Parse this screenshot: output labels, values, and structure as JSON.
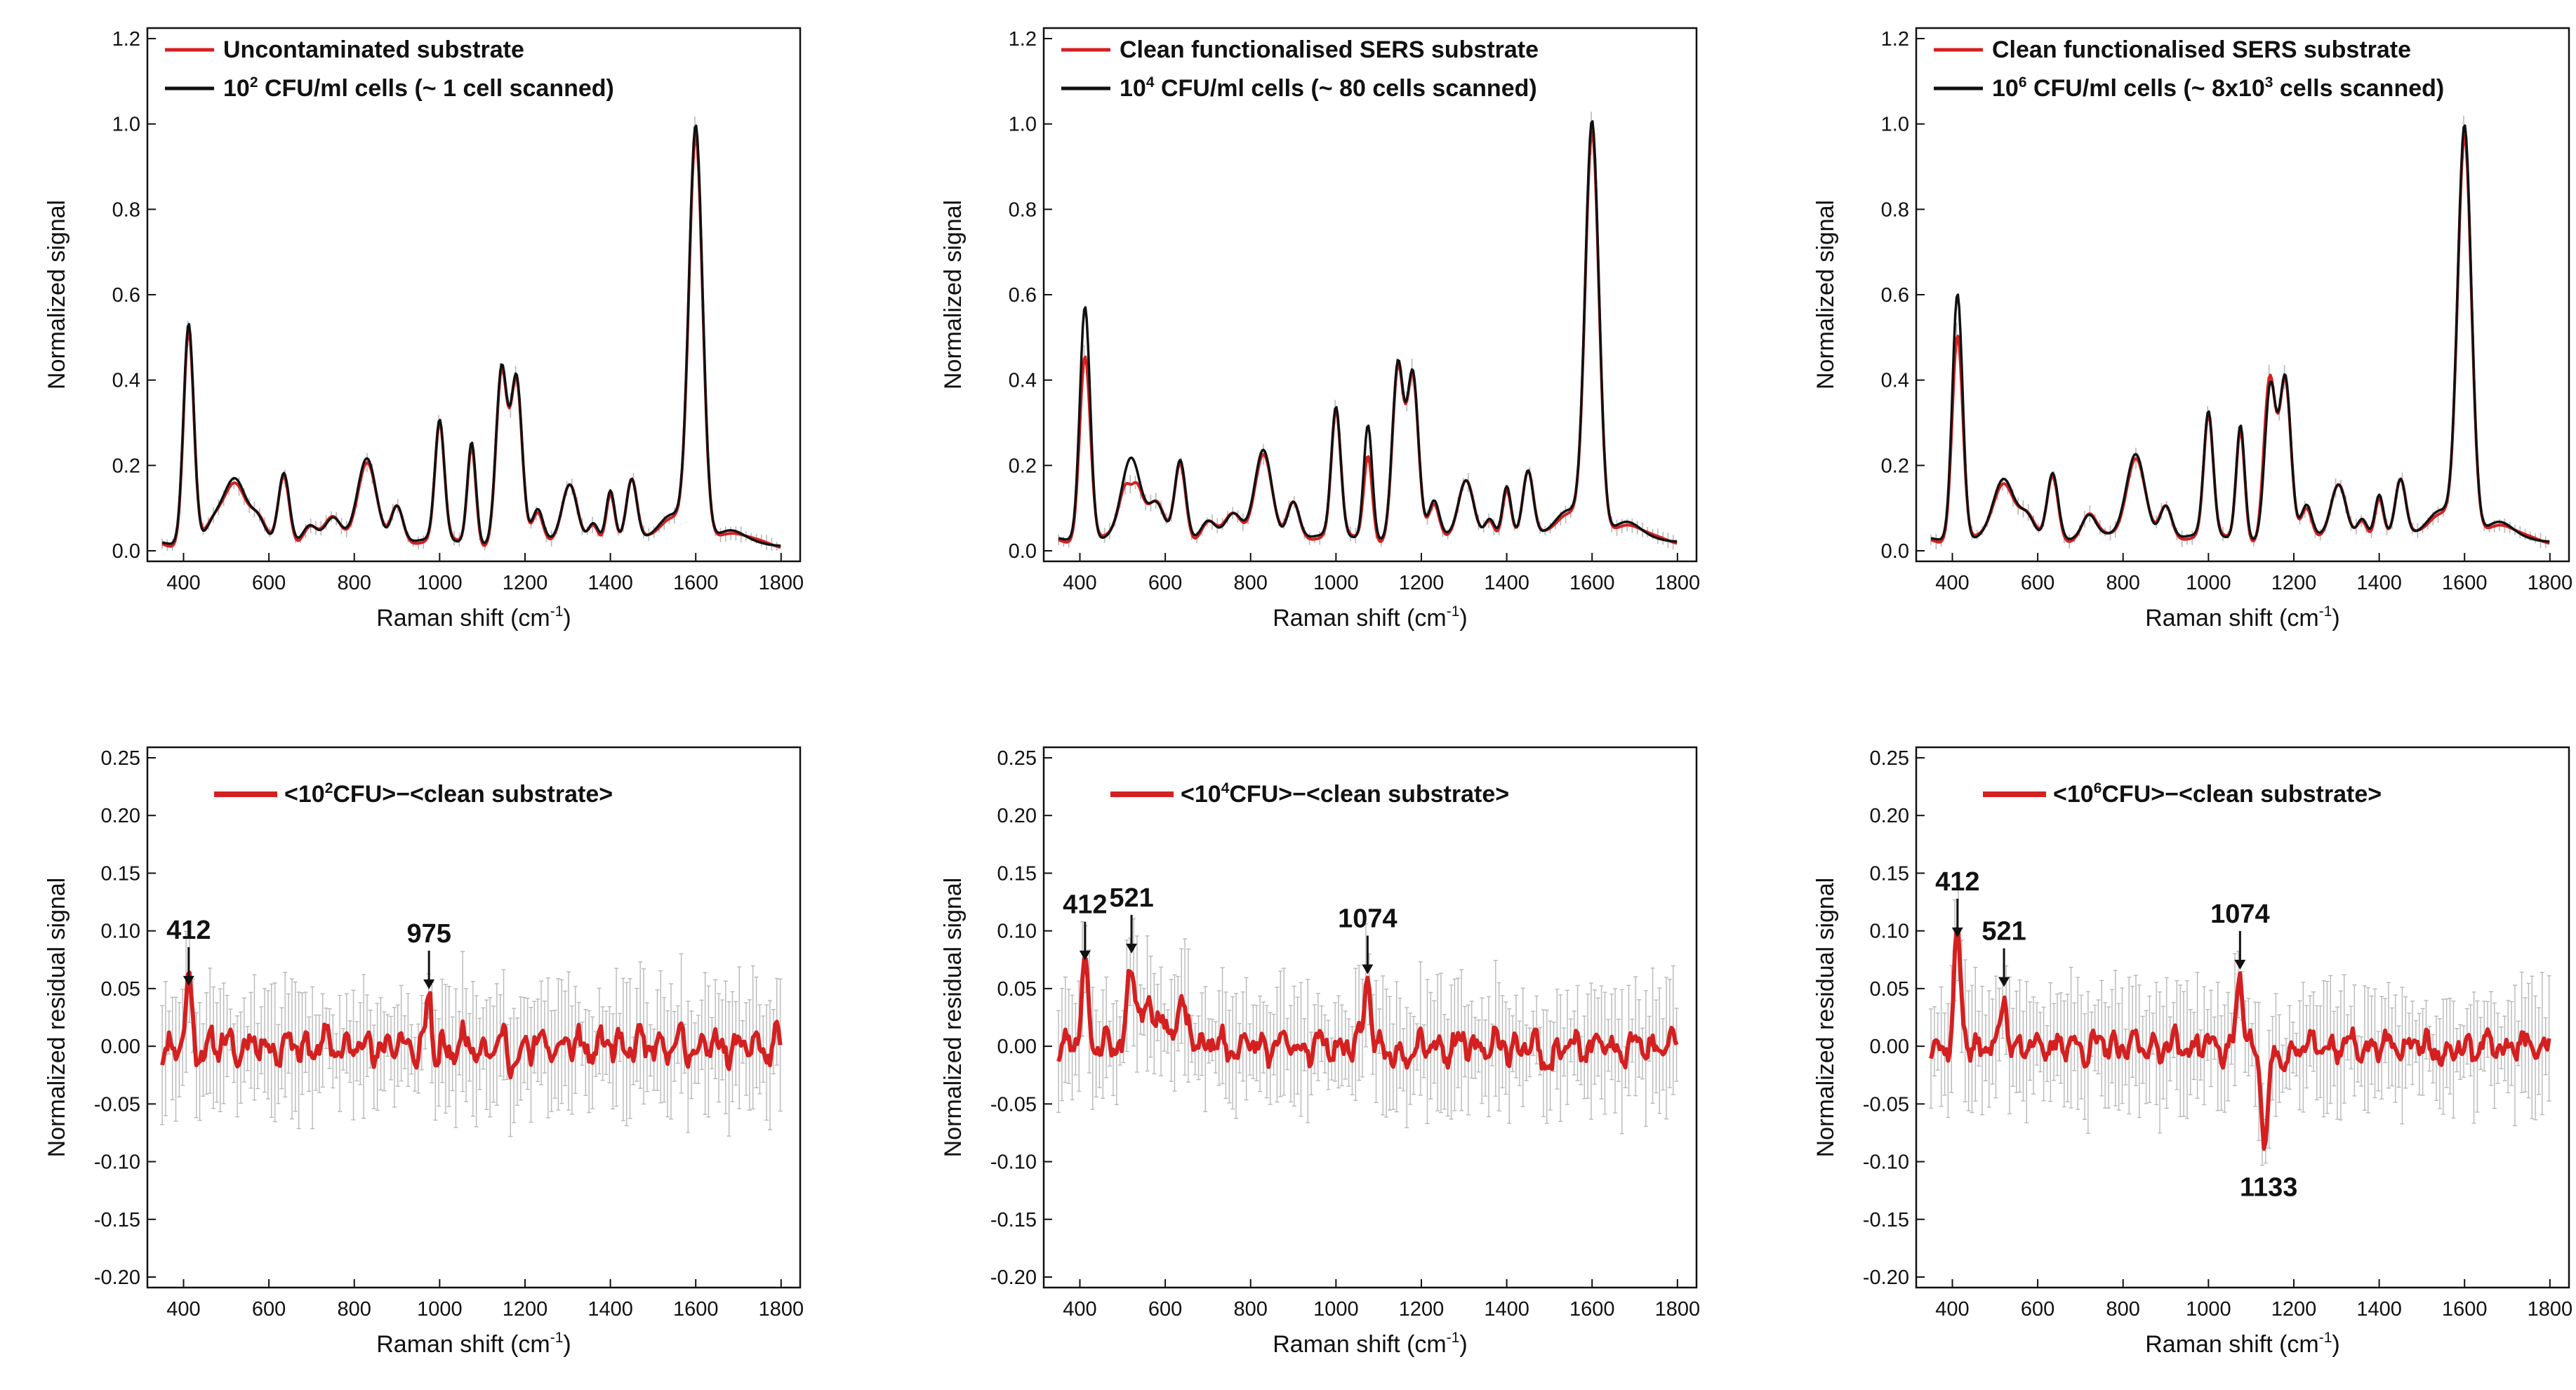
{
  "colors": {
    "contaminated": "#111111",
    "clean": "#d42020",
    "residual": "#d42020",
    "error_bar": "#b8b8b8",
    "axis": "#111111",
    "negative_peak": "#c81e1e"
  },
  "chart_data": [
    {
      "id": "p1",
      "type": "line",
      "xlabel": "Raman shift (cm-1)",
      "ylabel": "Normalized signal",
      "xlim": [
        340,
        1820
      ],
      "ylim": [
        0.0,
        1.2
      ],
      "xticks": [
        400,
        600,
        800,
        1000,
        1200,
        1400,
        1600,
        1800
      ],
      "yticks": [
        0.0,
        0.2,
        0.4,
        0.6,
        0.8,
        1.0,
        1.2
      ],
      "legend": [
        {
          "key": "clean",
          "parts": [
            {
              "t": "Uncontaminated substrate"
            }
          ]
        },
        {
          "key": "contaminated",
          "parts": [
            {
              "t": "10"
            },
            {
              "t": "2",
              "sup": true
            },
            {
              "t": " CFU/ml cells (~ 1 cell scanned)"
            }
          ]
        }
      ],
      "baseline": 0.02,
      "peaks": [
        {
          "x": 412,
          "h": 0.52,
          "w": 12
        },
        {
          "x": 470,
          "h": 0.04,
          "w": 20
        },
        {
          "x": 520,
          "h": 0.14,
          "w": 26
        },
        {
          "x": 575,
          "h": 0.05,
          "w": 18
        },
        {
          "x": 635,
          "h": 0.17,
          "w": 13
        },
        {
          "x": 695,
          "h": 0.04,
          "w": 16
        },
        {
          "x": 750,
          "h": 0.05,
          "w": 18
        },
        {
          "x": 830,
          "h": 0.2,
          "w": 22
        },
        {
          "x": 900,
          "h": 0.09,
          "w": 14
        },
        {
          "x": 1000,
          "h": 0.28,
          "w": 11
        },
        {
          "x": 1075,
          "h": 0.24,
          "w": 10
        },
        {
          "x": 1145,
          "h": 0.41,
          "w": 13
        },
        {
          "x": 1180,
          "h": 0.38,
          "w": 13
        },
        {
          "x": 1230,
          "h": 0.07,
          "w": 12
        },
        {
          "x": 1305,
          "h": 0.14,
          "w": 18
        },
        {
          "x": 1360,
          "h": 0.05,
          "w": 12
        },
        {
          "x": 1400,
          "h": 0.12,
          "w": 10
        },
        {
          "x": 1450,
          "h": 0.14,
          "w": 12
        },
        {
          "x": 1545,
          "h": 0.07,
          "w": 30
        },
        {
          "x": 1600,
          "h": 0.97,
          "w": 16
        },
        {
          "x": 1680,
          "h": 0.02,
          "w": 30
        }
      ],
      "clean_diff": [],
      "residual": null
    },
    {
      "id": "p2",
      "type": "line",
      "xlabel": "Raman shift (cm-1)",
      "ylabel": "Normalized signal",
      "xlim": [
        340,
        1820
      ],
      "ylim": [
        0.0,
        1.2
      ],
      "xticks": [
        400,
        600,
        800,
        1000,
        1200,
        1400,
        1600,
        1800
      ],
      "yticks": [
        0.0,
        0.2,
        0.4,
        0.6,
        0.8,
        1.0,
        1.2
      ],
      "legend": [
        {
          "key": "clean",
          "parts": [
            {
              "t": "Clean functionalised SERS substrate"
            }
          ]
        },
        {
          "key": "contaminated",
          "parts": [
            {
              "t": "10"
            },
            {
              "t": "4",
              "sup": true
            },
            {
              "t": " CFU/ml cells (~ 80 cells scanned)"
            }
          ]
        }
      ],
      "baseline": 0.03,
      "peaks": [
        {
          "x": 412,
          "h": 0.55,
          "w": 12
        },
        {
          "x": 520,
          "h": 0.18,
          "w": 22
        },
        {
          "x": 580,
          "h": 0.08,
          "w": 18
        },
        {
          "x": 635,
          "h": 0.19,
          "w": 13
        },
        {
          "x": 700,
          "h": 0.04,
          "w": 16
        },
        {
          "x": 760,
          "h": 0.05,
          "w": 18
        },
        {
          "x": 830,
          "h": 0.21,
          "w": 20
        },
        {
          "x": 900,
          "h": 0.09,
          "w": 14
        },
        {
          "x": 1000,
          "h": 0.3,
          "w": 11
        },
        {
          "x": 1075,
          "h": 0.27,
          "w": 10
        },
        {
          "x": 1145,
          "h": 0.41,
          "w": 13
        },
        {
          "x": 1180,
          "h": 0.38,
          "w": 13
        },
        {
          "x": 1230,
          "h": 0.08,
          "w": 12
        },
        {
          "x": 1305,
          "h": 0.14,
          "w": 18
        },
        {
          "x": 1360,
          "h": 0.05,
          "w": 12
        },
        {
          "x": 1400,
          "h": 0.12,
          "w": 10
        },
        {
          "x": 1450,
          "h": 0.15,
          "w": 12
        },
        {
          "x": 1545,
          "h": 0.07,
          "w": 30
        },
        {
          "x": 1600,
          "h": 0.97,
          "w": 16
        },
        {
          "x": 1680,
          "h": 0.03,
          "w": 30
        }
      ],
      "clean_diff": [
        {
          "x": 412,
          "d": -0.1
        },
        {
          "x": 520,
          "d": -0.05
        },
        {
          "x": 1075,
          "d": -0.06
        }
      ],
      "residual": null
    },
    {
      "id": "p3",
      "type": "line",
      "xlabel": "Raman shift (cm-1)",
      "ylabel": "Normalized signal",
      "xlim": [
        340,
        1820
      ],
      "ylim": [
        0.0,
        1.2
      ],
      "xticks": [
        400,
        600,
        800,
        1000,
        1200,
        1400,
        1600,
        1800
      ],
      "yticks": [
        0.0,
        0.2,
        0.4,
        0.6,
        0.8,
        1.0,
        1.2
      ],
      "legend": [
        {
          "key": "clean",
          "parts": [
            {
              "t": "Clean functionalised SERS substrate"
            }
          ]
        },
        {
          "key": "contaminated",
          "parts": [
            {
              "t": "10"
            },
            {
              "t": "6",
              "sup": true
            },
            {
              "t": " CFU/ml cells (~ 8x10"
            },
            {
              "t": "3",
              "sup": true
            },
            {
              "t": " cells scanned)"
            }
          ]
        }
      ],
      "baseline": 0.03,
      "peaks": [
        {
          "x": 412,
          "h": 0.58,
          "w": 12
        },
        {
          "x": 520,
          "h": 0.13,
          "w": 24
        },
        {
          "x": 575,
          "h": 0.05,
          "w": 18
        },
        {
          "x": 635,
          "h": 0.16,
          "w": 13
        },
        {
          "x": 720,
          "h": 0.05,
          "w": 16
        },
        {
          "x": 830,
          "h": 0.2,
          "w": 22
        },
        {
          "x": 900,
          "h": 0.08,
          "w": 14
        },
        {
          "x": 1000,
          "h": 0.29,
          "w": 11
        },
        {
          "x": 1075,
          "h": 0.27,
          "w": 10
        },
        {
          "x": 1145,
          "h": 0.36,
          "w": 13
        },
        {
          "x": 1180,
          "h": 0.37,
          "w": 13
        },
        {
          "x": 1230,
          "h": 0.07,
          "w": 12
        },
        {
          "x": 1305,
          "h": 0.13,
          "w": 18
        },
        {
          "x": 1360,
          "h": 0.05,
          "w": 12
        },
        {
          "x": 1400,
          "h": 0.1,
          "w": 10
        },
        {
          "x": 1450,
          "h": 0.13,
          "w": 12
        },
        {
          "x": 1545,
          "h": 0.07,
          "w": 30
        },
        {
          "x": 1600,
          "h": 0.96,
          "w": 16
        },
        {
          "x": 1680,
          "h": 0.03,
          "w": 30
        }
      ],
      "clean_diff": [
        {
          "x": 412,
          "d": -0.08
        },
        {
          "x": 1133,
          "d": 0.05
        }
      ],
      "residual": null
    },
    {
      "id": "p4",
      "type": "line",
      "xlabel": "Raman shift (cm-1)",
      "ylabel": "Normalized residual signal",
      "xlim": [
        340,
        1820
      ],
      "ylim": [
        -0.2,
        0.25
      ],
      "xticks": [
        400,
        600,
        800,
        1000,
        1200,
        1400,
        1600,
        1800
      ],
      "yticks": [
        -0.2,
        -0.15,
        -0.1,
        -0.05,
        0.0,
        0.05,
        0.1,
        0.15,
        0.2,
        0.25
      ],
      "legend": [
        {
          "key": "residual",
          "parts": [
            {
              "t": "<10"
            },
            {
              "t": "2",
              "sup": true
            },
            {
              "t": "CFU>−<clean substrate>"
            }
          ]
        }
      ],
      "residual": {
        "seed": 11,
        "noise_amp": 0.016,
        "err_amp": 0.05,
        "features": [
          {
            "x": 412,
            "h": 0.05,
            "w": 7
          },
          {
            "x": 975,
            "h": 0.045,
            "w": 6
          },
          {
            "x": 990,
            "h": -0.015,
            "w": 8
          },
          {
            "x": 1175,
            "h": -0.012,
            "w": 12
          }
        ],
        "annotations": [
          {
            "x": 412,
            "label": "412",
            "y": 0.05,
            "color": "#111111",
            "above": true
          },
          {
            "x": 975,
            "label": "975",
            "y": 0.047,
            "color": "#111111",
            "above": true
          }
        ]
      }
    },
    {
      "id": "p5",
      "type": "line",
      "xlabel": "Raman shift (cm-1)",
      "ylabel": "Normalized residual signal",
      "xlim": [
        340,
        1820
      ],
      "ylim": [
        -0.2,
        0.25
      ],
      "xticks": [
        400,
        600,
        800,
        1000,
        1200,
        1400,
        1600,
        1800
      ],
      "yticks": [
        -0.2,
        -0.15,
        -0.1,
        -0.05,
        0.0,
        0.05,
        0.1,
        0.15,
        0.2,
        0.25
      ],
      "legend": [
        {
          "key": "residual",
          "parts": [
            {
              "t": "<10"
            },
            {
              "t": "4",
              "sup": true
            },
            {
              "t": "CFU>−<clean substrate>"
            }
          ]
        }
      ],
      "residual": {
        "seed": 23,
        "noise_amp": 0.014,
        "err_amp": 0.05,
        "features": [
          {
            "x": 412,
            "h": 0.072,
            "w": 8
          },
          {
            "x": 521,
            "h": 0.075,
            "w": 9
          },
          {
            "x": 570,
            "h": 0.035,
            "w": 22
          },
          {
            "x": 640,
            "h": 0.025,
            "w": 20
          },
          {
            "x": 1074,
            "h": 0.058,
            "w": 8
          },
          {
            "x": 1135,
            "h": -0.012,
            "w": 14
          },
          {
            "x": 1500,
            "h": -0.01,
            "w": 20
          }
        ],
        "annotations": [
          {
            "x": 412,
            "label": "412",
            "y": 0.072,
            "color": "#111111",
            "above": true
          },
          {
            "x": 521,
            "label": "521",
            "y": 0.078,
            "color": "#111111",
            "above": true
          },
          {
            "x": 1074,
            "label": "1074",
            "y": 0.06,
            "color": "#111111",
            "above": true
          }
        ]
      }
    },
    {
      "id": "p6",
      "type": "line",
      "xlabel": "Raman shift (cm-1)",
      "ylabel": "Normalized residual signal",
      "xlim": [
        340,
        1820
      ],
      "ylim": [
        -0.2,
        0.25
      ],
      "xticks": [
        400,
        600,
        800,
        1000,
        1200,
        1400,
        1600,
        1800
      ],
      "yticks": [
        -0.2,
        -0.15,
        -0.1,
        -0.05,
        0.0,
        0.05,
        0.1,
        0.15,
        0.2,
        0.25
      ],
      "legend": [
        {
          "key": "residual",
          "parts": [
            {
              "t": "<10"
            },
            {
              "t": "6",
              "sup": true
            },
            {
              "t": "CFU>−<clean substrate>"
            }
          ]
        }
      ],
      "residual": {
        "seed": 37,
        "noise_amp": 0.013,
        "err_amp": 0.05,
        "features": [
          {
            "x": 412,
            "h": 0.092,
            "w": 8
          },
          {
            "x": 521,
            "h": 0.047,
            "w": 6
          },
          {
            "x": 1074,
            "h": 0.062,
            "w": 7
          },
          {
            "x": 1133,
            "h": -0.078,
            "w": 9
          },
          {
            "x": 1175,
            "h": -0.02,
            "w": 10
          },
          {
            "x": 1560,
            "h": -0.015,
            "w": 10
          }
        ],
        "annotations": [
          {
            "x": 412,
            "label": "412",
            "y": 0.092,
            "color": "#111111",
            "above": true
          },
          {
            "x": 521,
            "label": "521",
            "y": 0.049,
            "color": "#111111",
            "above": true
          },
          {
            "x": 1074,
            "label": "1074",
            "y": 0.064,
            "color": "#111111",
            "above": true
          },
          {
            "x": 1133,
            "label": "1133",
            "y": -0.078,
            "color": "#c81e1e",
            "above": false
          }
        ]
      }
    }
  ]
}
